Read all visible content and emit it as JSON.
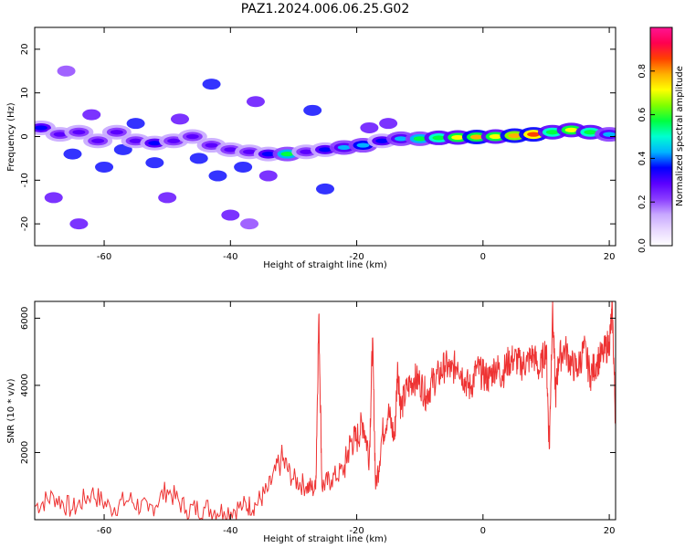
{
  "figure": {
    "title": "PAZ1.2024.006.06.25.G02"
  },
  "chart_data": [
    {
      "type": "heatmap",
      "xlabel": "Height of straight line (km)",
      "ylabel": "Frequency (Hz)",
      "xlim": [
        -71,
        21
      ],
      "ylim": [
        -25,
        25
      ],
      "xticks": [
        -60,
        -40,
        -20,
        0,
        20
      ],
      "yticks": [
        -20,
        -10,
        0,
        10,
        20
      ],
      "colorbar": {
        "label": "Normalized spectral amplitude",
        "range": [
          0,
          1
        ],
        "ticks": [
          "0.0",
          "0.2",
          "0.4",
          "0.6",
          "0.8"
        ],
        "colormap": [
          "#ffffff",
          "#e8d8ff",
          "#c8a8ff",
          "#8a3cff",
          "#5a00ff",
          "#0000ff",
          "#00b4ff",
          "#00ffd0",
          "#00ff40",
          "#80ff00",
          "#ffff00",
          "#ffb000",
          "#ff4000",
          "#ff0050",
          "#ff1493"
        ]
      },
      "ridge": {
        "x": [
          -70,
          -67,
          -64,
          -61,
          -58,
          -55,
          -52,
          -49,
          -46,
          -43,
          -40,
          -37,
          -34,
          -31,
          -28,
          -25,
          -22,
          -19,
          -16,
          -13,
          -10,
          -7,
          -4,
          -1,
          2,
          5,
          8,
          11,
          14,
          17,
          20
        ],
        "frequency": [
          2,
          0.5,
          1,
          -1,
          1,
          -1,
          -1.5,
          -1,
          0,
          -2,
          -3,
          -3.5,
          -4,
          -4,
          -3.5,
          -3,
          -2.5,
          -2,
          -1,
          -0.5,
          -0.5,
          -0.3,
          -0.2,
          -0.1,
          0,
          0.2,
          0.5,
          1,
          1.5,
          1,
          0.5
        ],
        "amplitude": [
          0.35,
          0.3,
          0.3,
          0.3,
          0.3,
          0.3,
          0.35,
          0.3,
          0.3,
          0.3,
          0.25,
          0.3,
          0.35,
          0.55,
          0.3,
          0.35,
          0.4,
          0.45,
          0.35,
          0.4,
          0.55,
          0.6,
          0.7,
          0.75,
          0.7,
          0.8,
          0.85,
          0.6,
          0.7,
          0.6,
          0.4
        ]
      },
      "scatter_patches": [
        {
          "x": -65,
          "y": -4,
          "a": 0.2
        },
        {
          "x": -62,
          "y": 5,
          "a": 0.1
        },
        {
          "x": -60,
          "y": -7,
          "a": 0.2
        },
        {
          "x": -57,
          "y": -3,
          "a": 0.2
        },
        {
          "x": -55,
          "y": 3,
          "a": 0.15
        },
        {
          "x": -52,
          "y": -6,
          "a": 0.2
        },
        {
          "x": -48,
          "y": 4,
          "a": 0.1
        },
        {
          "x": -45,
          "y": -5,
          "a": 0.2
        },
        {
          "x": -43,
          "y": 12,
          "a": 0.2
        },
        {
          "x": -42,
          "y": -9,
          "a": 0.2
        },
        {
          "x": -38,
          "y": -7,
          "a": 0.15
        },
        {
          "x": -36,
          "y": 8,
          "a": 0.08
        },
        {
          "x": -34,
          "y": -9,
          "a": 0.1
        },
        {
          "x": -27,
          "y": 6,
          "a": 0.2
        },
        {
          "x": -25,
          "y": -12,
          "a": 0.15
        },
        {
          "x": -68,
          "y": -14,
          "a": 0.08
        },
        {
          "x": -64,
          "y": -20,
          "a": 0.08
        },
        {
          "x": -50,
          "y": -14,
          "a": 0.08
        },
        {
          "x": -40,
          "y": -18,
          "a": 0.08
        },
        {
          "x": -37,
          "y": -20,
          "a": 0.06
        },
        {
          "x": -15,
          "y": 3,
          "a": 0.1
        },
        {
          "x": -18,
          "y": 2,
          "a": 0.12
        },
        {
          "x": -66,
          "y": 15,
          "a": 0.06
        }
      ]
    },
    {
      "type": "line",
      "xlabel": "Height of straight line (km)",
      "ylabel": "SNR (10 * v/v)",
      "xlim": [
        -71,
        21
      ],
      "ylim": [
        0,
        6500
      ],
      "xticks": [
        -60,
        -40,
        -20,
        0,
        20
      ],
      "yticks": [
        2000,
        4000,
        6000
      ],
      "color": "#ee3333",
      "series": [
        {
          "x": [
            -71,
            -68,
            -65,
            -62,
            -59,
            -56,
            -53,
            -50,
            -47,
            -44,
            -41,
            -38,
            -36,
            -34,
            -32,
            -30,
            -28,
            -26.5,
            -26,
            -25.5,
            -24,
            -22,
            -21,
            -20,
            -19,
            -18,
            -17.5,
            -17,
            -16,
            -15,
            -14,
            -13.5,
            -13,
            -12,
            -11,
            -10,
            -9,
            -8,
            -7,
            -6,
            -5,
            -4,
            -3,
            -2,
            -1,
            0,
            1,
            2,
            3,
            4,
            5,
            6,
            7,
            8,
            9,
            10,
            10.5,
            11,
            11.5,
            12,
            13,
            14,
            15,
            16,
            17,
            18,
            19,
            20,
            20.5,
            21
          ],
          "values": [
            400,
            700,
            300,
            800,
            350,
            600,
            250,
            900,
            300,
            350,
            250,
            400,
            450,
            900,
            1800,
            1200,
            1000,
            900,
            6100,
            1000,
            1200,
            1500,
            2300,
            2400,
            2900,
            1900,
            5400,
            900,
            2500,
            3200,
            2400,
            4600,
            3300,
            3900,
            4200,
            4100,
            3700,
            4100,
            4300,
            4600,
            4400,
            4700,
            4200,
            3900,
            4500,
            4300,
            4200,
            4600,
            4300,
            4700,
            4800,
            4600,
            4700,
            4900,
            4400,
            5200,
            2100,
            6300,
            3700,
            4800,
            5100,
            4600,
            4500,
            5100,
            4300,
            4700,
            4900,
            5300,
            6200,
            2800
          ]
        }
      ]
    }
  ]
}
